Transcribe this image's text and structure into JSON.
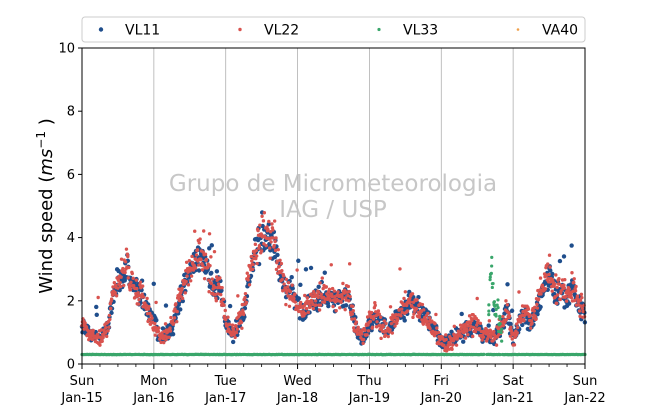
{
  "chart_data": {
    "type": "scatter",
    "title": "",
    "ylabel_text": "Wind speed (",
    "ylabel_unit": "ms",
    "ylabel_exp": "−1",
    "ylabel_close": " )",
    "ylim": [
      0,
      10
    ],
    "yticks": [
      0,
      2,
      4,
      6,
      8,
      10
    ],
    "xlim_hours": [
      0,
      168
    ],
    "x_ticks": [
      {
        "day": "Sun",
        "date": "Jan-15"
      },
      {
        "day": "Mon",
        "date": "Jan-16"
      },
      {
        "day": "Tue",
        "date": "Jan-17"
      },
      {
        "day": "Wed",
        "date": "Jan-18"
      },
      {
        "day": "Thu",
        "date": "Jan-19"
      },
      {
        "day": "Fri",
        "date": "Jan-20"
      },
      {
        "day": "Sat",
        "date": "Jan-21"
      },
      {
        "day": "Sun",
        "date": "Jan-22"
      }
    ],
    "grid": "vertical-major",
    "legend_placement": "top",
    "watermark": [
      "Grupo de Micrometeorologia",
      "IAG / USP"
    ],
    "series": [
      {
        "name": "VL11",
        "color": "#1f4e8c",
        "marker_size": 2.2,
        "profile": [
          [
            0,
            1.3
          ],
          [
            3,
            0.9
          ],
          [
            6,
            0.8
          ],
          [
            9,
            1.2
          ],
          [
            10,
            2.0
          ],
          [
            12,
            2.5
          ],
          [
            14,
            2.8
          ],
          [
            15,
            3.0
          ],
          [
            16,
            2.6
          ],
          [
            18,
            2.4
          ],
          [
            20,
            2.2
          ],
          [
            22,
            1.7
          ],
          [
            24,
            1.4
          ],
          [
            26,
            0.8
          ],
          [
            28,
            0.9
          ],
          [
            30,
            1.1
          ],
          [
            32,
            1.8
          ],
          [
            34,
            2.5
          ],
          [
            36,
            2.9
          ],
          [
            38,
            3.2
          ],
          [
            40,
            3.4
          ],
          [
            42,
            2.9
          ],
          [
            44,
            2.3
          ],
          [
            46,
            2.4
          ],
          [
            48,
            1.4
          ],
          [
            50,
            1.0
          ],
          [
            52,
            1.1
          ],
          [
            54,
            1.6
          ],
          [
            55,
            2.2
          ],
          [
            56,
            2.7
          ],
          [
            58,
            3.6
          ],
          [
            60,
            3.9
          ],
          [
            62,
            4.1
          ],
          [
            64,
            4.0
          ],
          [
            66,
            3.0
          ],
          [
            68,
            2.2
          ],
          [
            70,
            2.4
          ],
          [
            72,
            1.9
          ],
          [
            74,
            1.6
          ],
          [
            76,
            1.9
          ],
          [
            78,
            2.0
          ],
          [
            80,
            2.3
          ],
          [
            82,
            2.1
          ],
          [
            84,
            2.0
          ],
          [
            86,
            2.1
          ],
          [
            88,
            2.3
          ],
          [
            90,
            1.8
          ],
          [
            92,
            1.0
          ],
          [
            94,
            0.8
          ],
          [
            96,
            1.3
          ],
          [
            98,
            1.5
          ],
          [
            100,
            1.3
          ],
          [
            102,
            1.0
          ],
          [
            104,
            1.3
          ],
          [
            106,
            1.6
          ],
          [
            108,
            1.8
          ],
          [
            110,
            2.0
          ],
          [
            112,
            1.8
          ],
          [
            114,
            1.6
          ],
          [
            116,
            1.4
          ],
          [
            118,
            1.0
          ],
          [
            120,
            0.7
          ],
          [
            122,
            0.7
          ],
          [
            124,
            0.8
          ],
          [
            126,
            0.9
          ],
          [
            128,
            1.0
          ],
          [
            130,
            1.2
          ],
          [
            132,
            1.1
          ],
          [
            134,
            0.9
          ],
          [
            136,
            0.9
          ],
          [
            138,
            0.9
          ],
          [
            140,
            1.1
          ],
          [
            142,
            1.6
          ],
          [
            144,
            0.8
          ],
          [
            146,
            1.2
          ],
          [
            148,
            1.6
          ],
          [
            150,
            1.3
          ],
          [
            152,
            1.8
          ],
          [
            154,
            2.4
          ],
          [
            156,
            2.8
          ],
          [
            158,
            2.2
          ],
          [
            160,
            2.3
          ],
          [
            162,
            2.0
          ],
          [
            164,
            2.4
          ],
          [
            166,
            1.8
          ],
          [
            168,
            1.5
          ]
        ]
      },
      {
        "name": "VL22",
        "color": "#d9534f",
        "marker_size": 1.7,
        "profile": [
          [
            0,
            1.2
          ],
          [
            3,
            0.9
          ],
          [
            6,
            0.8
          ],
          [
            9,
            1.3
          ],
          [
            10,
            2.1
          ],
          [
            12,
            2.6
          ],
          [
            14,
            2.9
          ],
          [
            15,
            3.1
          ],
          [
            16,
            2.7
          ],
          [
            18,
            2.3
          ],
          [
            20,
            2.1
          ],
          [
            22,
            1.6
          ],
          [
            24,
            1.3
          ],
          [
            26,
            0.8
          ],
          [
            28,
            0.9
          ],
          [
            30,
            1.2
          ],
          [
            32,
            1.9
          ],
          [
            34,
            2.6
          ],
          [
            36,
            3.0
          ],
          [
            38,
            3.3
          ],
          [
            40,
            3.5
          ],
          [
            42,
            3.0
          ],
          [
            44,
            2.2
          ],
          [
            46,
            2.5
          ],
          [
            48,
            1.3
          ],
          [
            50,
            1.0
          ],
          [
            52,
            1.2
          ],
          [
            54,
            1.7
          ],
          [
            55,
            2.3
          ],
          [
            56,
            2.8
          ],
          [
            58,
            3.7
          ],
          [
            60,
            4.0
          ],
          [
            62,
            4.2
          ],
          [
            64,
            3.9
          ],
          [
            66,
            2.9
          ],
          [
            68,
            2.3
          ],
          [
            70,
            2.3
          ],
          [
            72,
            1.8
          ],
          [
            74,
            1.7
          ],
          [
            76,
            2.0
          ],
          [
            78,
            2.1
          ],
          [
            80,
            2.2
          ],
          [
            82,
            2.2
          ],
          [
            84,
            2.1
          ],
          [
            86,
            2.0
          ],
          [
            88,
            2.2
          ],
          [
            90,
            1.7
          ],
          [
            92,
            1.0
          ],
          [
            94,
            0.8
          ],
          [
            96,
            1.4
          ],
          [
            98,
            1.6
          ],
          [
            100,
            1.2
          ],
          [
            102,
            1.0
          ],
          [
            104,
            1.4
          ],
          [
            106,
            1.7
          ],
          [
            108,
            1.9
          ],
          [
            110,
            2.1
          ],
          [
            112,
            1.7
          ],
          [
            114,
            1.5
          ],
          [
            116,
            1.3
          ],
          [
            118,
            1.0
          ],
          [
            120,
            0.7
          ],
          [
            122,
            0.6
          ],
          [
            124,
            0.8
          ],
          [
            126,
            1.0
          ],
          [
            128,
            1.1
          ],
          [
            130,
            1.3
          ],
          [
            132,
            1.2
          ],
          [
            134,
            0.9
          ],
          [
            136,
            1.0
          ],
          [
            138,
            0.9
          ],
          [
            140,
            1.2
          ],
          [
            142,
            1.7
          ],
          [
            144,
            0.8
          ],
          [
            146,
            1.3
          ],
          [
            148,
            1.7
          ],
          [
            150,
            1.4
          ],
          [
            152,
            1.9
          ],
          [
            154,
            2.5
          ],
          [
            156,
            2.9
          ],
          [
            158,
            2.3
          ],
          [
            160,
            2.4
          ],
          [
            162,
            2.1
          ],
          [
            164,
            2.5
          ],
          [
            166,
            1.9
          ],
          [
            168,
            1.6
          ]
        ]
      },
      {
        "name": "VL33",
        "color": "#3aa66b",
        "marker_size": 1.6,
        "baseline": 0.3,
        "burst": [
          [
            136,
            1.6
          ],
          [
            136.4,
            2.8
          ],
          [
            136.8,
            3.3
          ],
          [
            137.2,
            2.5
          ],
          [
            137.6,
            2.0
          ],
          [
            138,
            1.8
          ],
          [
            138.4,
            1.5
          ],
          [
            138.8,
            1.9
          ],
          [
            139.2,
            1.2
          ],
          [
            139.6,
            1.4
          ],
          [
            140,
            1.1
          ]
        ],
        "gaps": [
          [
            134.5,
            135.2
          ],
          [
            139.8,
            140.3
          ]
        ]
      },
      {
        "name": "VA40",
        "color": "#f0a04b",
        "marker_size": 1.2,
        "values": []
      }
    ]
  }
}
